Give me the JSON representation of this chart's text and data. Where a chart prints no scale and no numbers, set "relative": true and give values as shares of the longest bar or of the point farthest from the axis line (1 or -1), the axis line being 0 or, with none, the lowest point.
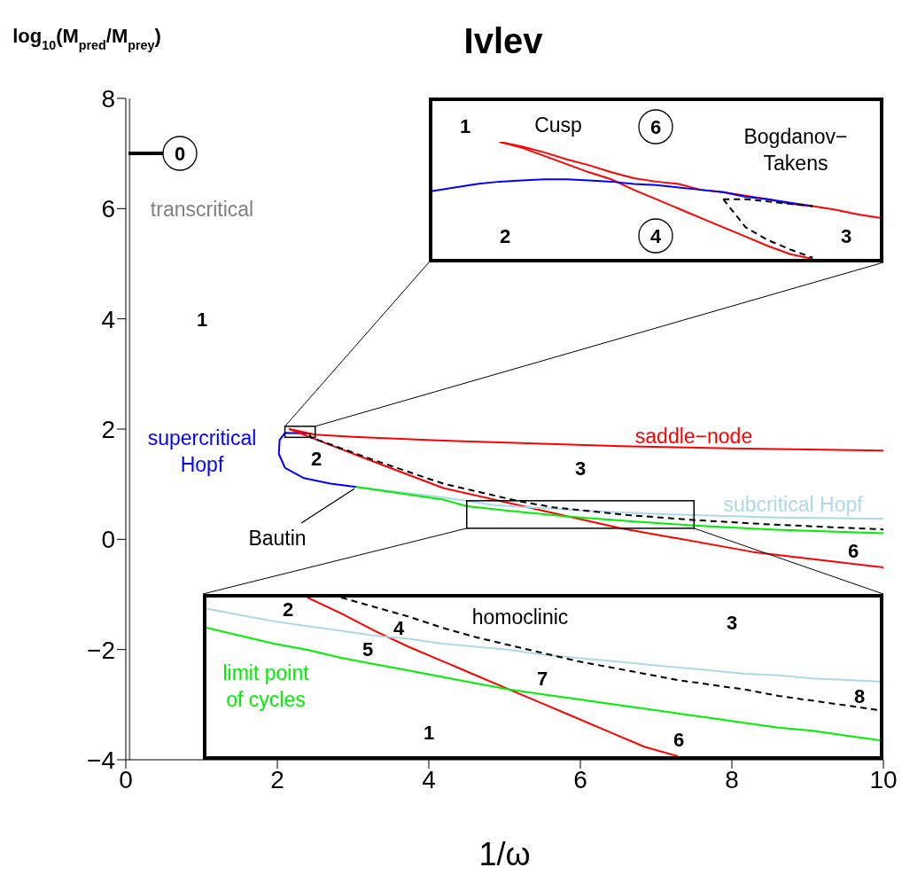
{
  "chart_data": [
    {
      "type": "line",
      "title": "Ivlev",
      "xlabel": "1/ω",
      "ylabel": "log$_{10}$(M$_{pred}$/M$_{prey}$)",
      "xlim": [
        0,
        10
      ],
      "ylim": [
        -4,
        8
      ],
      "xticks": [
        0,
        2,
        4,
        6,
        8,
        10
      ],
      "yticks": [
        {
          "value": -4,
          "label": "−4"
        },
        {
          "value": -2,
          "label": "−2"
        },
        0,
        2,
        4,
        6,
        8
      ],
      "series": [
        {
          "name": "transcritical",
          "color": "#808080",
          "x": [
            0.05,
            0.05
          ],
          "values": [
            -4,
            8
          ]
        },
        {
          "name": "supercritical Hopf",
          "color": "#0000ff",
          "x": [
            2.43,
            2.1,
            2.03,
            2.02,
            2.1,
            2.35,
            2.7,
            3.04
          ],
          "values": [
            1.92,
            1.93,
            1.8,
            1.55,
            1.3,
            1.11,
            1.01,
            0.95
          ]
        },
        {
          "name": "saddle−node",
          "color": "#ff0000",
          "x": [
            10,
            8,
            6.53,
            4.19,
            3,
            2.5,
            2.16,
            2.44,
            3.25,
            4.19,
            5.31,
            5.85,
            6.54,
            8.28,
            10
          ],
          "values": [
            1.61,
            1.65,
            1.69,
            1.79,
            1.86,
            1.9,
            2.0,
            1.85,
            1.42,
            0.93,
            0.58,
            0.41,
            0.2,
            -0.23,
            -0.51
          ]
        },
        {
          "name": "subcritical Hopf",
          "color": "#add8e6",
          "x": [
            3.04,
            4.19,
            4.86,
            5.31,
            6.06,
            6.78,
            7.5,
            8.5,
            10
          ],
          "values": [
            0.95,
            0.76,
            0.62,
            0.58,
            0.52,
            0.47,
            0.44,
            0.4,
            0.37
          ]
        },
        {
          "color": "#00ee00",
          "x": [
            3.04,
            4.19,
            4.5,
            5.04,
            5.85,
            6.63,
            7.5,
            8.5,
            10
          ],
          "values": [
            0.95,
            0.72,
            0.6,
            0.52,
            0.41,
            0.33,
            0.25,
            0.18,
            0.11
          ]
        },
        {
          "color": "#000000",
          "line_style": "dashed",
          "x": [
            2.43,
            2.44,
            3.25,
            4.19,
            5.16,
            5.64,
            6.06,
            6.63,
            7.5,
            8.5,
            10
          ],
          "values": [
            1.92,
            1.85,
            1.45,
            1.01,
            0.7,
            0.58,
            0.52,
            0.44,
            0.35,
            0.27,
            0.18
          ]
        }
      ],
      "annotations": [
        "1",
        "2",
        "3",
        "6",
        "0",
        {
          "text": "Bautin",
          "x": 3.04,
          "y": 0.95
        }
      ]
    },
    {
      "type": "line",
      "relative": true,
      "tick_labels": false,
      "categories": [
        null,
        null,
        null,
        null,
        null,
        null,
        null,
        null,
        null,
        null,
        null,
        null,
        null,
        null,
        null,
        null,
        null,
        null,
        null,
        null,
        null
      ],
      "series": [
        {
          "color": "#ff0000",
          "values": [
            null,
            null,
            null,
            1,
            0.96,
            0.91,
            0.85,
            0.8,
            0.74,
            0.69,
            0.66,
            0.64,
            0.59,
            0.57,
            0.54,
            0.51,
            0.47,
            0.45,
            0.42,
            0.38,
            0.35
          ]
        },
        {
          "color": "#ff0000",
          "values": [
            null,
            null,
            null,
            1,
            0.95,
            0.88,
            0.81,
            0.74,
            0.68,
            0.59,
            0.51,
            0.43,
            0.35,
            0.27,
            0.19,
            0.11,
            0.04,
            0,
            null,
            null,
            null
          ]
        },
        {
          "color": "#0000ff",
          "values": [
            0.58,
            0.61,
            0.64,
            0.66,
            0.67,
            0.68,
            0.68,
            0.67,
            0.66,
            0.64,
            0.63,
            0.61,
            0.59,
            0.57,
            0.53,
            0.51,
            0.48,
            0.45,
            null,
            null,
            null
          ]
        },
        {
          "color": "#000000",
          "line_style": "dashed",
          "values": [
            null,
            null,
            null,
            null,
            null,
            null,
            null,
            null,
            null,
            null,
            null,
            null,
            null,
            0.51,
            0.51,
            0.49,
            0.47,
            0.45,
            null,
            null,
            null
          ]
        },
        {
          "color": "#000000",
          "line_style": "dashed",
          "values": [
            null,
            null,
            null,
            null,
            null,
            null,
            null,
            null,
            null,
            null,
            null,
            null,
            null,
            0.51,
            0.27,
            0.16,
            0.08,
            0.01,
            null,
            null,
            null
          ]
        }
      ],
      "annotations": [
        "1",
        "Cusp",
        "6",
        "Bogdanov−Takens",
        "2",
        "4",
        "3"
      ]
    },
    {
      "type": "line",
      "relative": true,
      "tick_labels": false,
      "categories": [
        null,
        null,
        null,
        null,
        null,
        null,
        null,
        null,
        null,
        null,
        null,
        null,
        null,
        null,
        null,
        null,
        null,
        null,
        null,
        null,
        null
      ],
      "series": [
        {
          "color": "#ff0000",
          "values": [
            null,
            null,
            null,
            1,
            0.9,
            0.79,
            0.69,
            0.6,
            0.51,
            0.42,
            0.33,
            0.24,
            0.15,
            0.06,
            0,
            null,
            null,
            null,
            null,
            null,
            null
          ]
        },
        {
          "color": "#add8e6",
          "values": [
            0.93,
            0.89,
            0.85,
            0.82,
            0.79,
            0.76,
            0.74,
            0.71,
            0.69,
            0.67,
            0.64,
            0.62,
            0.6,
            0.58,
            0.56,
            0.54,
            0.52,
            0.51,
            0.49,
            0.48,
            0.47
          ]
        },
        {
          "name": "limit point of cycles",
          "color": "#00ee00",
          "values": [
            0.81,
            0.76,
            0.71,
            0.67,
            0.62,
            0.58,
            0.54,
            0.5,
            0.46,
            0.42,
            0.39,
            0.36,
            0.33,
            0.3,
            0.27,
            0.24,
            0.21,
            0.18,
            0.16,
            0.13,
            0.1
          ]
        },
        {
          "name": "homoclinic",
          "color": "#000000",
          "line_style": "dashed",
          "values": [
            null,
            null,
            null,
            null,
            1,
            0.94,
            0.88,
            0.81,
            0.75,
            0.7,
            0.65,
            0.6,
            0.56,
            0.52,
            0.48,
            0.45,
            0.42,
            0.38,
            0.35,
            0.32,
            0.29
          ]
        }
      ],
      "annotations": [
        "2",
        "4",
        "3",
        "5",
        "7",
        "8",
        "1",
        "6"
      ]
    }
  ]
}
